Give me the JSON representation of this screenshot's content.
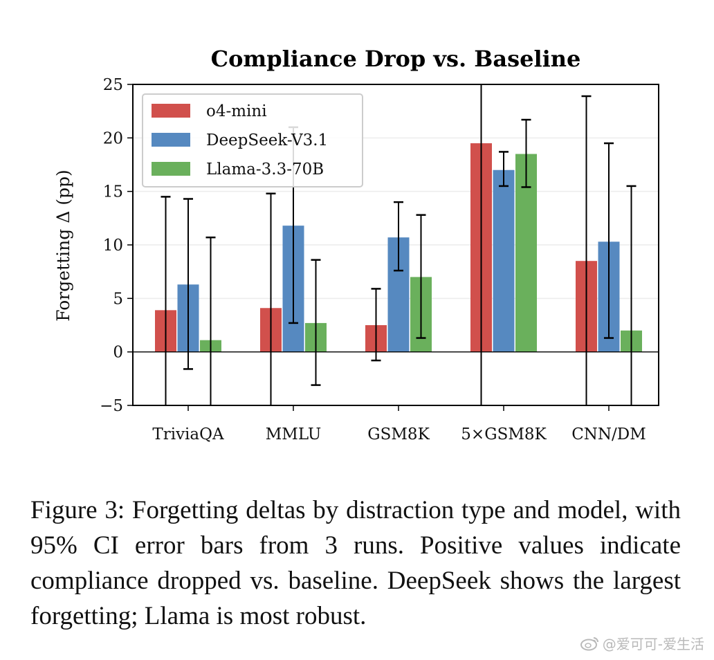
{
  "chart_data": {
    "type": "bar",
    "title": "Compliance Drop vs. Baseline",
    "xlabel": "",
    "ylabel": "Forgetting Δ (pp)",
    "ylim": [
      -5,
      25
    ],
    "yticks": [
      -5,
      0,
      5,
      10,
      15,
      20,
      25
    ],
    "ytick_labels": [
      "−5",
      "0",
      "5",
      "10",
      "15",
      "20",
      "25"
    ],
    "grid": true,
    "legend_position": "top-left",
    "categories": [
      "TriviaQA",
      "MMLU",
      "GSM8K",
      "5×GSM8K",
      "CNN/DM"
    ],
    "series": [
      {
        "name": "o4-mini",
        "color": "#d1504c",
        "values": [
          3.9,
          4.1,
          2.5,
          19.5,
          8.5
        ],
        "err_low": [
          -6,
          -6,
          -0.8,
          -6,
          -6
        ],
        "err_high": [
          14.5,
          14.8,
          5.9,
          26,
          23.9
        ]
      },
      {
        "name": "DeepSeek-V3.1",
        "color": "#5689c0",
        "values": [
          6.3,
          11.8,
          10.7,
          17.0,
          10.3
        ],
        "err_low": [
          -1.6,
          2.7,
          7.6,
          15.5,
          1.3
        ],
        "err_high": [
          14.3,
          21.0,
          14.0,
          18.7,
          19.5
        ]
      },
      {
        "name": "Llama-3.3-70B",
        "color": "#6ab05c",
        "values": [
          1.1,
          2.7,
          7.0,
          18.5,
          2.0
        ],
        "err_low": [
          -6,
          -3.1,
          1.3,
          15.4,
          -6
        ],
        "err_high": [
          10.7,
          8.6,
          12.8,
          21.7,
          15.5
        ]
      }
    ]
  },
  "caption": {
    "text": "Figure 3:  Forgetting deltas by distraction type and model, with 95% CI error bars from 3 runs. Positive val­ues indicate compliance dropped vs. baseline. DeepSeek shows the largest forgetting; Llama is most robust."
  },
  "watermark": {
    "text": "@爱可可-爱生活",
    "icon": "weibo-icon"
  }
}
